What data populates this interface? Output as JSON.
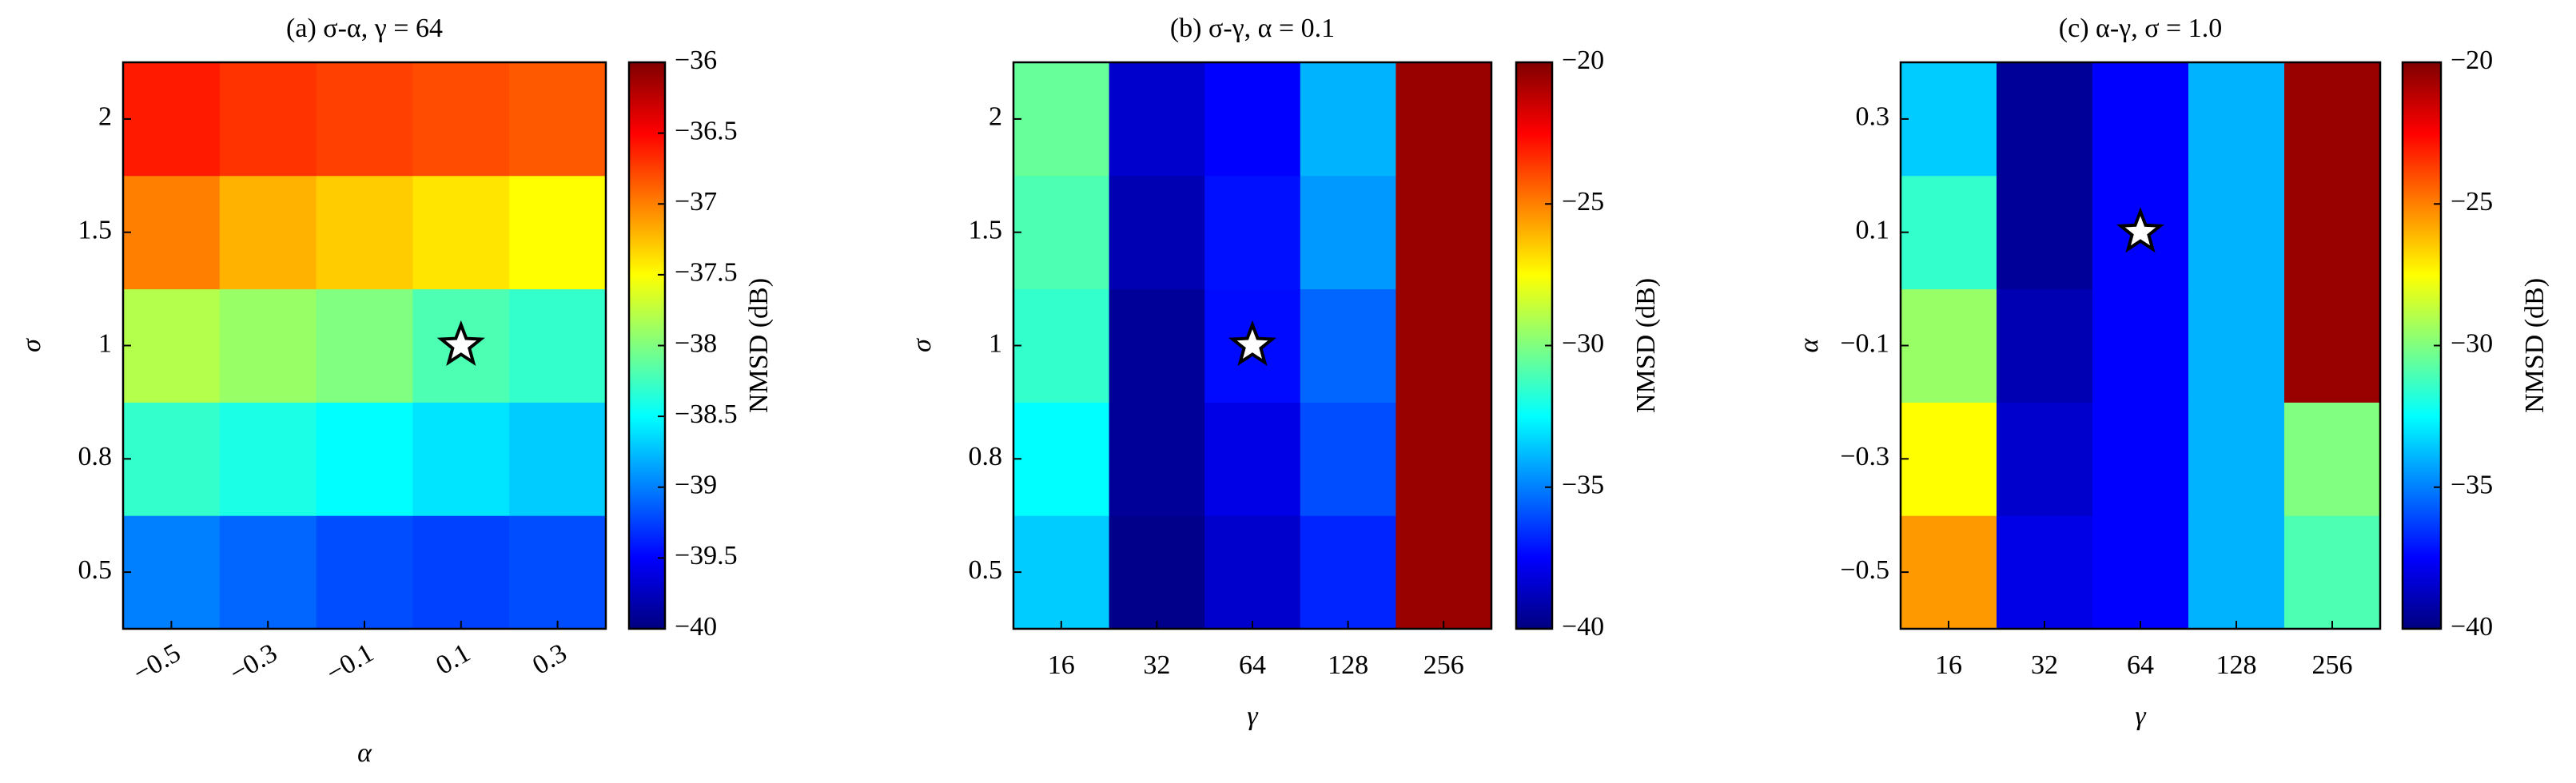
{
  "chart_data": [
    {
      "type": "heatmap",
      "title": "(a) σ-α, γ = 64",
      "x_label": "α",
      "y_label": "σ",
      "colorbar_label": "NMSD (dB)",
      "colormap": "jet",
      "xtick_rotation": -30,
      "x": [
        "−0.5",
        "−0.3",
        "−0.1",
        "0.1",
        "0.3"
      ],
      "y": [
        "0.5",
        "0.8",
        "1",
        "1.5",
        "2"
      ],
      "z": [
        [
          -39.0,
          -39.1,
          -39.2,
          -39.25,
          -39.2
        ],
        [
          -38.3,
          -38.4,
          -38.5,
          -38.6,
          -38.7
        ],
        [
          -37.8,
          -37.9,
          -38.0,
          -38.2,
          -38.3
        ],
        [
          -37.0,
          -37.2,
          -37.3,
          -37.4,
          -37.5
        ],
        [
          -36.6,
          -36.7,
          -36.75,
          -36.8,
          -36.85
        ]
      ],
      "optimum": {
        "x": "0.1",
        "y": "1"
      },
      "clim": [
        -40,
        -36
      ],
      "cticks": [
        {
          "value": -40,
          "label": "−40"
        },
        {
          "value": -39.5,
          "label": "−39.5"
        },
        {
          "value": -39,
          "label": "−39"
        },
        {
          "value": -38.5,
          "label": "−38.5"
        },
        {
          "value": -38,
          "label": "−38"
        },
        {
          "value": -37.5,
          "label": "−37.5"
        },
        {
          "value": -37,
          "label": "−37"
        },
        {
          "value": -36.5,
          "label": "−36.5"
        },
        {
          "value": -36,
          "label": "−36"
        }
      ]
    },
    {
      "type": "heatmap",
      "title": "(b) σ-γ, α = 0.1",
      "x_label": "γ",
      "y_label": "σ",
      "colorbar_label": "NMSD (dB)",
      "colormap": "jet",
      "xtick_rotation": 0,
      "x": [
        "16",
        "32",
        "64",
        "128",
        "256"
      ],
      "y": [
        "0.5",
        "0.8",
        "1",
        "1.5",
        "2"
      ],
      "z": [
        [
          -33.5,
          -39.8,
          -38.5,
          -36.8,
          -20.5
        ],
        [
          -32.5,
          -39.5,
          -38.0,
          -36.0,
          -20.5
        ],
        [
          -31.5,
          -39.5,
          -37.3,
          -35.5,
          -20.5
        ],
        [
          -31.0,
          -39.0,
          -37.2,
          -34.5,
          -20.5
        ],
        [
          -30.5,
          -38.5,
          -37.5,
          -34.0,
          -20.5
        ]
      ],
      "optimum": {
        "x": "64",
        "y": "1"
      },
      "clim": [
        -40,
        -20
      ],
      "cticks": [
        {
          "value": -40,
          "label": "−40"
        },
        {
          "value": -35,
          "label": "−35"
        },
        {
          "value": -30,
          "label": "−30"
        },
        {
          "value": -25,
          "label": "−25"
        },
        {
          "value": -20,
          "label": "−20"
        }
      ]
    },
    {
      "type": "heatmap",
      "title": "(c) α-γ, σ = 1.0",
      "x_label": "γ",
      "y_label": "α",
      "colorbar_label": "NMSD (dB)",
      "colormap": "jet",
      "xtick_rotation": 0,
      "x": [
        "16",
        "32",
        "64",
        "128",
        "256"
      ],
      "y": [
        "−0.5",
        "−0.3",
        "−0.1",
        "0.1",
        "0.3"
      ],
      "z": [
        [
          -25.5,
          -38.0,
          -37.5,
          -34.0,
          -31.0
        ],
        [
          -27.5,
          -38.5,
          -37.5,
          -34.0,
          -30.0
        ],
        [
          -29.5,
          -39.0,
          -37.5,
          -34.0,
          -20.5
        ],
        [
          -31.5,
          -39.5,
          -37.5,
          -34.0,
          -20.5
        ],
        [
          -33.5,
          -39.5,
          -37.5,
          -34.0,
          -20.5
        ]
      ],
      "optimum": {
        "x": "64",
        "y": "0.1"
      },
      "clim": [
        -40,
        -20
      ],
      "cticks": [
        {
          "value": -40,
          "label": "−40"
        },
        {
          "value": -35,
          "label": "−35"
        },
        {
          "value": -30,
          "label": "−30"
        },
        {
          "value": -25,
          "label": "−25"
        },
        {
          "value": -20,
          "label": "−20"
        }
      ]
    }
  ]
}
